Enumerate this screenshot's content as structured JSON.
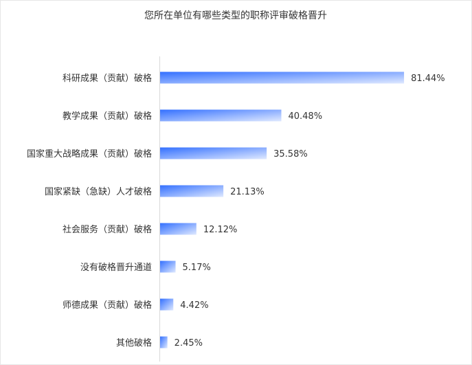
{
  "chart_data": {
    "type": "bar",
    "orientation": "horizontal",
    "title": "您所在单位有哪些类型的职称评审破格晋升",
    "categories": [
      "科研成果（贡献）破格",
      "教学成果（贡献）破格",
      "国家重大战略成果（贡献）破格",
      "国家紧缺（急缺）人才破格",
      "社会服务（贡献）破格",
      "没有破格晋升通道",
      "师德成果（贡献）破格",
      "其他破格"
    ],
    "values": [
      81.44,
      40.48,
      35.58,
      21.13,
      12.12,
      5.17,
      4.42,
      2.45
    ],
    "labels": [
      "81.44%",
      "40.48%",
      "35.58%",
      "21.13%",
      "12.12%",
      "5.17%",
      "4.42%",
      "2.45%"
    ],
    "unit": "%",
    "xlim": [
      0,
      100
    ],
    "grid": false,
    "colors": {
      "bar_start": "#3370ff",
      "bar_end": "#dfe9ff",
      "axis": "#d9d9d9"
    }
  }
}
